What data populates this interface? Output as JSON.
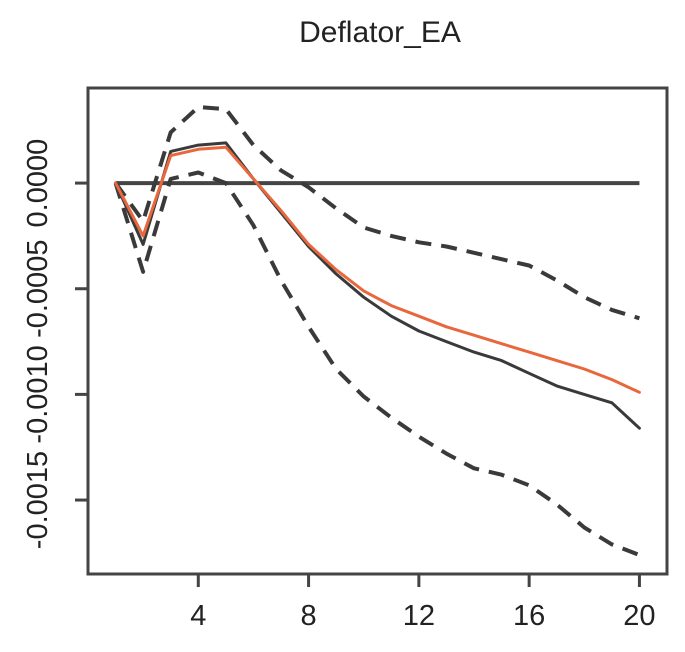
{
  "chart_data": {
    "type": "line",
    "title": "Deflator_EA",
    "xlabel": "",
    "ylabel": "",
    "xlim": [
      0,
      21
    ],
    "ylim": [
      -0.00185,
      0.00045
    ],
    "x_ticks": [
      4,
      8,
      12,
      16,
      20
    ],
    "x_tick_labels": [
      "4",
      "8",
      "12",
      "16",
      "20"
    ],
    "y_ticks": [
      0,
      -0.0005,
      -0.001,
      -0.0015
    ],
    "y_tick_labels": [
      "0.0000",
      "-0.0005",
      "-0.0010",
      "-0.0015"
    ],
    "grid": false,
    "legend": "none",
    "zero_line": {
      "y": 0,
      "x_range": [
        1,
        20
      ]
    },
    "series": [
      {
        "style": "solid",
        "color": "#3a3a3a",
        "x": [
          1,
          2,
          3,
          4,
          5,
          6,
          7,
          8,
          9,
          10,
          11,
          12,
          13,
          14,
          15,
          16,
          17,
          18,
          19,
          20
        ],
        "y": [
          0,
          -0.00029,
          0.00015,
          0.00018,
          0.00019,
          2e-05,
          -0.00014,
          -0.0003,
          -0.00043,
          -0.00054,
          -0.00063,
          -0.0007,
          -0.00075,
          -0.0008,
          -0.00084,
          -0.0009,
          -0.00096,
          -0.001,
          -0.00104,
          -0.00116
        ]
      },
      {
        "style": "solid",
        "color": "#e8673c",
        "x": [
          1,
          2,
          3,
          4,
          5,
          6,
          7,
          8,
          9,
          10,
          11,
          12,
          13,
          14,
          15,
          16,
          17,
          18,
          19,
          20
        ],
        "y": [
          0,
          -0.00025,
          0.00013,
          0.00016,
          0.00017,
          2e-05,
          -0.00013,
          -0.00029,
          -0.00041,
          -0.00051,
          -0.00058,
          -0.00063,
          -0.00068,
          -0.00072,
          -0.00076,
          -0.0008,
          -0.00084,
          -0.00088,
          -0.00093,
          -0.00099
        ]
      },
      {
        "style": "dashed",
        "color": "#3a3a3a",
        "x": [
          1,
          2,
          3,
          4,
          5,
          6,
          7,
          8,
          9,
          10,
          11,
          12,
          13,
          14,
          15,
          16,
          17,
          18,
          19,
          20
        ],
        "y": [
          0,
          -0.00018,
          0.00024,
          0.00036,
          0.00035,
          0.00018,
          6e-05,
          -2e-05,
          -0.00012,
          -0.00021,
          -0.00025,
          -0.00028,
          -0.0003,
          -0.00033,
          -0.00036,
          -0.00039,
          -0.00046,
          -0.00054,
          -0.0006,
          -0.00064
        ]
      },
      {
        "style": "dashed",
        "color": "#3a3a3a",
        "x": [
          1,
          2,
          3,
          4,
          5,
          6,
          7,
          8,
          9,
          10,
          11,
          12,
          13,
          14,
          15,
          16,
          17,
          18,
          19,
          20
        ],
        "y": [
          0,
          -0.00042,
          2e-05,
          5e-05,
          0,
          -0.0002,
          -0.00046,
          -0.00068,
          -0.00088,
          -0.00101,
          -0.00111,
          -0.0012,
          -0.00128,
          -0.00135,
          -0.00138,
          -0.00143,
          -0.00152,
          -0.00163,
          -0.00171,
          -0.00176
        ]
      }
    ]
  }
}
